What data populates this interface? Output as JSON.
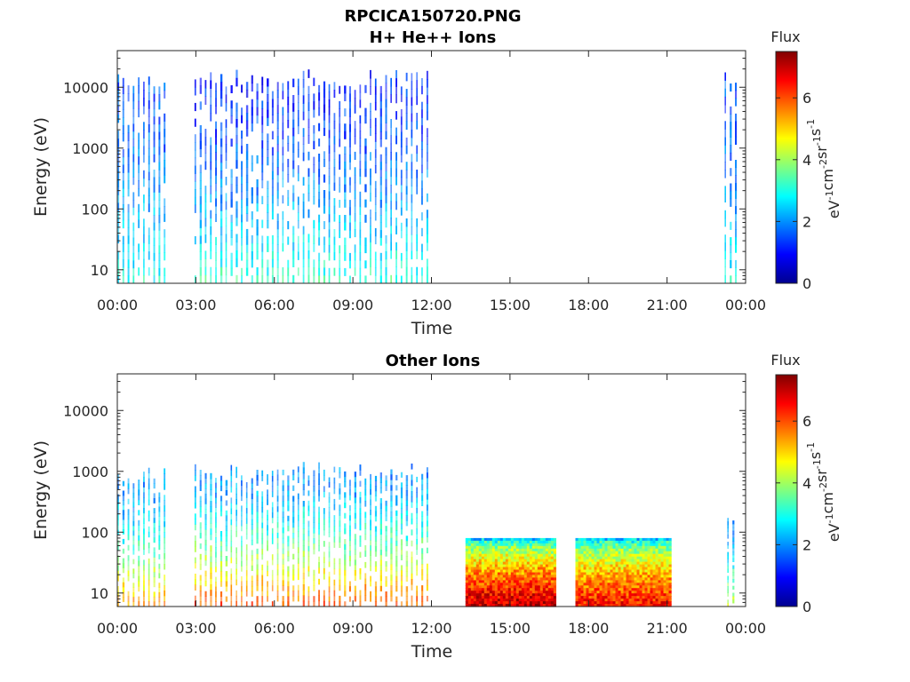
{
  "figure_title": "RPCICA150720.PNG",
  "chart_data": [
    {
      "type": "heatmap",
      "title": "H+ He++ Ions",
      "xlabel": "Time",
      "ylabel": "Energy (eV)",
      "x_tick_labels": [
        "00:00",
        "03:00",
        "06:00",
        "09:00",
        "12:00",
        "15:00",
        "18:00",
        "21:00",
        "00:00"
      ],
      "x_range_hours": [
        0,
        24
      ],
      "y_scale": "log",
      "y_range": [
        6,
        40000
      ],
      "y_tick_labels": [
        "10",
        "100",
        "1000",
        "10000"
      ],
      "y_tick_values": [
        10,
        100,
        1000,
        10000
      ],
      "colorbar": {
        "title": "Flux",
        "unit_parts": [
          "eV",
          "-1",
          "cm",
          "-2",
          "sr",
          "-1",
          "s",
          "-1"
        ],
        "range": [
          0,
          7.5
        ],
        "ticks": [
          0,
          2,
          4,
          6
        ],
        "colormap": "jet"
      },
      "data_segments": [
        {
          "start_hour": 0.0,
          "end_hour": 1.8,
          "pattern": "striped",
          "emin": 6,
          "emax": 20000,
          "flux_low_energy": 3.0,
          "flux_high_energy": 1.5
        },
        {
          "start_hour": 2.95,
          "end_hour": 11.9,
          "pattern": "striped",
          "emin": 6,
          "emax": 20000,
          "flux_low_energy": 3.2,
          "flux_high_energy": 1.2
        },
        {
          "start_hour": 23.2,
          "end_hour": 23.6,
          "pattern": "striped",
          "emin": 6,
          "emax": 18000,
          "flux_low_energy": 3.0,
          "flux_high_energy": 1.5
        }
      ]
    },
    {
      "type": "heatmap",
      "title": "Other Ions",
      "xlabel": "Time",
      "ylabel": "Energy (eV)",
      "x_tick_labels": [
        "00:00",
        "03:00",
        "06:00",
        "09:00",
        "12:00",
        "15:00",
        "18:00",
        "21:00",
        "00:00"
      ],
      "x_range_hours": [
        0,
        24
      ],
      "y_scale": "log",
      "y_range": [
        6,
        40000
      ],
      "y_tick_labels": [
        "10",
        "100",
        "1000",
        "10000"
      ],
      "y_tick_values": [
        10,
        100,
        1000,
        10000
      ],
      "colorbar": {
        "title": "Flux",
        "unit_parts": [
          "eV",
          "-1",
          "cm",
          "-2",
          "sr",
          "-1",
          "s",
          "-1"
        ],
        "range": [
          0,
          7.5
        ],
        "ticks": [
          0,
          2,
          4,
          6
        ],
        "colormap": "jet"
      },
      "data_segments": [
        {
          "start_hour": 0.0,
          "end_hour": 1.8,
          "pattern": "striped",
          "emin": 6,
          "emax": 1200,
          "flux_low_energy": 5.5,
          "flux_high_energy": 2.0
        },
        {
          "start_hour": 2.95,
          "end_hour": 11.9,
          "pattern": "striped",
          "emin": 6,
          "emax": 1500,
          "flux_low_energy": 6.0,
          "flux_high_energy": 2.0
        },
        {
          "start_hour": 13.3,
          "end_hour": 16.7,
          "pattern": "solid",
          "emin": 6,
          "emax": 80,
          "flux_low_energy": 7.0,
          "flux_high_energy": 2.5
        },
        {
          "start_hour": 17.5,
          "end_hour": 21.1,
          "pattern": "solid",
          "emin": 6,
          "emax": 80,
          "flux_low_energy": 6.5,
          "flux_high_energy": 2.5
        },
        {
          "start_hour": 23.3,
          "end_hour": 23.6,
          "pattern": "striped",
          "emin": 6,
          "emax": 300,
          "flux_low_energy": 4.5,
          "flux_high_energy": 2.0
        }
      ]
    }
  ]
}
